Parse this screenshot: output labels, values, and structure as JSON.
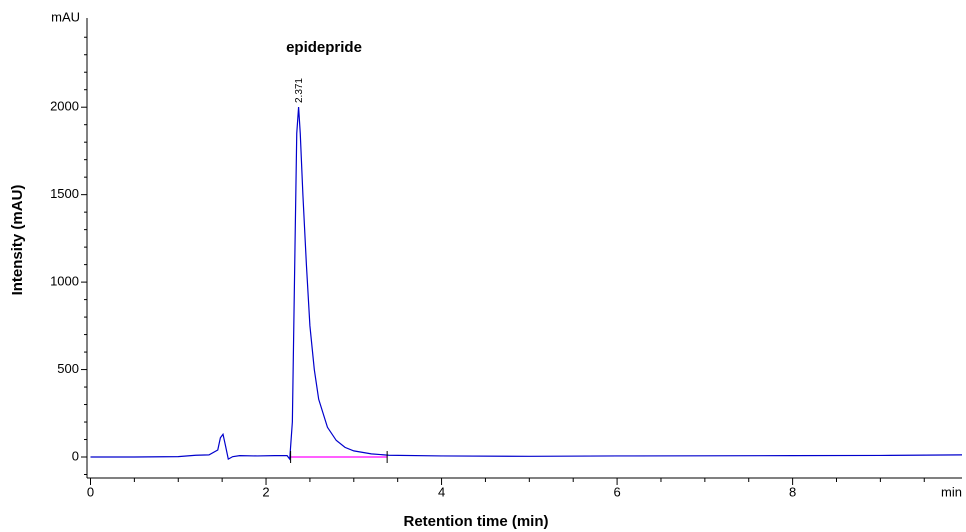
{
  "chart_data": {
    "type": "line",
    "title": "epidepride",
    "xlabel": "Retention time (min)",
    "ylabel": "Intensity (mAU)",
    "x_unit": "min",
    "y_unit": "mAU",
    "xlim": [
      0,
      9.93
    ],
    "ylim": [
      -120,
      2510
    ],
    "xticks": [
      0,
      2,
      4,
      6,
      8
    ],
    "yticks": [
      0,
      500,
      1000,
      1500,
      2000
    ],
    "xminorticks": [
      0.5,
      1,
      1.5,
      2.5,
      3,
      3.5,
      4.5,
      5,
      5.5,
      6.5,
      7,
      7.5,
      8.5,
      9,
      9.5
    ],
    "yminorticks": [
      -100,
      100,
      200,
      300,
      400,
      600,
      700,
      800,
      900,
      1100,
      1200,
      1300,
      1400,
      1600,
      1700,
      1800,
      1900,
      2100,
      2200,
      2300,
      2400
    ],
    "peak_label": {
      "x": 2.371,
      "y": 2001
    },
    "series": [
      {
        "color": "#0000cc",
        "x": [
          0,
          0.5,
          1.0,
          1.2,
          1.35,
          1.45,
          1.48,
          1.51,
          1.54,
          1.57,
          1.62,
          1.7,
          1.9,
          2.1,
          2.24,
          2.27,
          2.3,
          2.33,
          2.35,
          2.371,
          2.39,
          2.42,
          2.46,
          2.5,
          2.55,
          2.6,
          2.7,
          2.8,
          2.9,
          3.0,
          3.2,
          3.4,
          4,
          5,
          6,
          7,
          8,
          9,
          9.93
        ],
        "values": [
          0,
          0,
          2,
          10,
          12,
          40,
          110,
          130,
          60,
          -12,
          2,
          8,
          6,
          8,
          8,
          -12,
          200,
          1200,
          1850,
          2001,
          1850,
          1500,
          1100,
          750,
          500,
          330,
          170,
          95,
          55,
          35,
          18,
          10,
          6,
          4,
          6,
          7,
          8,
          9,
          12
        ]
      },
      {
        "color": "#ff00ff",
        "x": [
          2.28,
          3.38
        ],
        "values": [
          0,
          0
        ]
      }
    ]
  }
}
